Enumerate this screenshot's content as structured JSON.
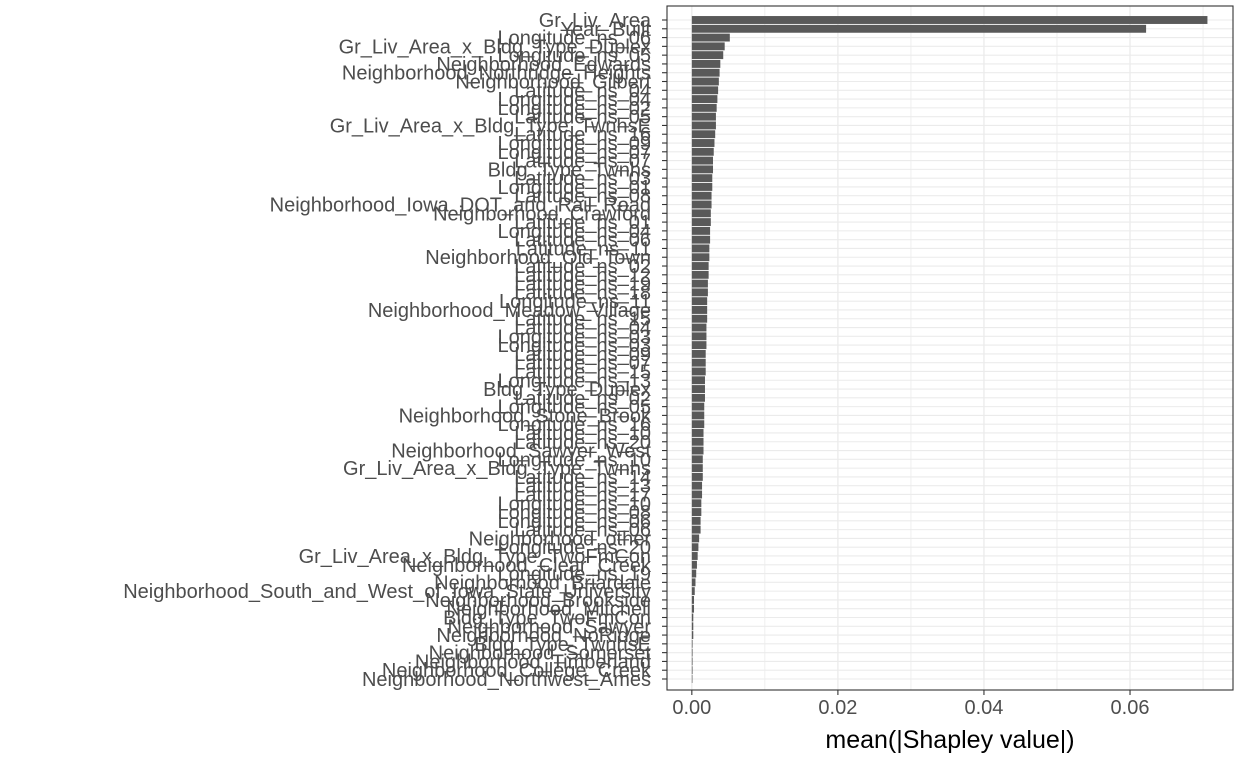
{
  "chart_data": {
    "type": "bar",
    "orientation": "horizontal",
    "xlabel": "mean(|Shapley value|)",
    "ylabel": "",
    "xlim": [
      -0.0034,
      0.0741
    ],
    "x_ticks": [
      0.0,
      0.02,
      0.04,
      0.06
    ],
    "x_tick_labels": [
      "0.00",
      "0.02",
      "0.04",
      "0.06"
    ],
    "grid": "on",
    "bar_color": "#595959",
    "categories": [
      "Gr_Liv_Area",
      "Year_Built",
      "Longitude_ns_06",
      "Gr_Liv_Area_x_Bldg_Type_Duplex",
      "Longitude_ns_05",
      "Neighborhood_Edwards",
      "Neighborhood_Northridge_Heights",
      "Neighborhood_Gilbert",
      "Latitude_ns_04",
      "Longitude_ns_04",
      "Longitude_ns_02",
      "Latitude_ns_05",
      "Gr_Liv_Area_x_Bldg_Type_TwnhsE",
      "Latitude_ns_16",
      "Longitude_ns_09",
      "Longitude_ns_07",
      "Latitude_ns_07",
      "Bldg_Type_Twnhs",
      "Latitude_ns_03",
      "Longitude_ns_01",
      "Latitude_ns_08",
      "Neighborhood_Iowa_DOT_and_Rail_Road",
      "Neighborhood_Crawford",
      "Latitude_ns_01",
      "Longitude_ns_04",
      "Latitude_ns_06",
      "Latitude_ns_11",
      "Neighborhood_Old_Town",
      "Latitude_ns_02",
      "Latitude_ns_12",
      "Latitude_ns_19",
      "Latitude_ns_18",
      "Longitude_ns_11",
      "Neighborhood_Meadow_Village",
      "Latitude_ns_15",
      "Latitude_ns_04",
      "Longitude_ns_03",
      "Longitude_ns_03",
      "Latitude_ns_09",
      "Latitude_ns_07",
      "Latitude_ns_15",
      "Longitude_ns_13",
      "Bldg_Type_Duplex",
      "Latitude_ns_02",
      "Longitude_ns_05",
      "Neighborhood_Stone_Brook",
      "Longitude_ns_16",
      "Latitude_ns_10",
      "Latitude_ns_20",
      "Neighborhood_Sawyer_West",
      "Longitude_ns_10",
      "Gr_Liv_Area_x_Bldg_Type_Twnhs",
      "Latitude_ns_14",
      "Latitude_ns_13",
      "Latitude_ns_17",
      "Longitude_ns_10",
      "Longitude_ns_08",
      "Longitude_ns_06",
      "Latitude_ns_06",
      "Neighborhood_other",
      "Longitude_ns_20",
      "Gr_Liv_Area_x_Bldg_Type_TwoFmCon",
      "Neighborhood_Clear_Creek",
      "Longitude_ns_19",
      "Neighborhood_Briardale",
      "Neighborhood_South_and_West_of_Iowa_State_University",
      "Neighborhood_Brookside",
      "Neighborhood_Mitchell",
      "Bldg_Type_TwoFmCon",
      "Neighborhood_Sawyer",
      "Neighborhood_NoRidge",
      "Bldg_Type_TwnhsE",
      "Neighborhood_Somerset",
      "Neighborhood_Timberland",
      "Neighborhood_College_Creek",
      "Neighborhood_Northwest_Ames"
    ],
    "values": [
      0.0706,
      0.0622,
      0.0052,
      0.0045,
      0.0043,
      0.0039,
      0.0038,
      0.0037,
      0.0036,
      0.0035,
      0.0034,
      0.0033,
      0.0033,
      0.0032,
      0.0031,
      0.003,
      0.0029,
      0.0029,
      0.0028,
      0.0028,
      0.0027,
      0.0027,
      0.0026,
      0.0026,
      0.0025,
      0.0025,
      0.0024,
      0.0024,
      0.0023,
      0.0023,
      0.0022,
      0.0022,
      0.0021,
      0.0021,
      0.0021,
      0.002,
      0.002,
      0.002,
      0.0019,
      0.0019,
      0.0019,
      0.0018,
      0.0018,
      0.0018,
      0.0017,
      0.0017,
      0.0017,
      0.0016,
      0.0016,
      0.0016,
      0.0015,
      0.0015,
      0.0015,
      0.0014,
      0.0014,
      0.0013,
      0.0013,
      0.0012,
      0.0012,
      0.001,
      0.0009,
      0.0008,
      0.0007,
      0.0006,
      0.0005,
      0.0004,
      0.0003,
      0.0003,
      0.0002,
      0.0002,
      0.0002,
      0.0001,
      0.0001,
      0.0001,
      0.0001,
      5e-05
    ]
  }
}
